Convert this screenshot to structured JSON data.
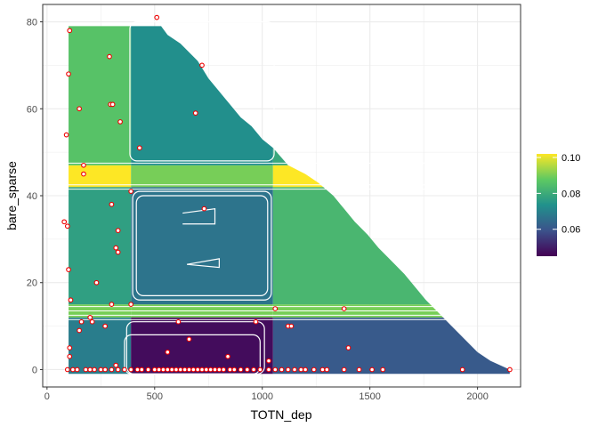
{
  "chart_data": {
    "type": "heatmap",
    "xlabel": "TOTN_dep",
    "ylabel": "bare_sparse",
    "xlim": [
      -20,
      2200
    ],
    "ylim": [
      -4,
      84
    ],
    "x_ticks": [
      0,
      500,
      1000,
      1500,
      2000
    ],
    "x_tick_labels": [
      "0",
      "500",
      "1000",
      "1500",
      "2000"
    ],
    "y_ticks": [
      0,
      20,
      40,
      60,
      80
    ],
    "y_tick_labels": [
      "0",
      "20",
      "40",
      "60",
      "80"
    ],
    "grid": true,
    "legend": {
      "position": "right",
      "min": 0.045,
      "max": 0.102,
      "ticks": [
        0.06,
        0.08,
        0.1
      ],
      "tick_labels": [
        "0.06",
        "0.08",
        "0.10"
      ],
      "colormap": "viridis"
    },
    "surface": {
      "x_bands": [
        {
          "from": 100,
          "to": 390
        },
        {
          "from": 390,
          "to": 1050
        },
        {
          "from": 1050,
          "to": 2150
        }
      ],
      "y_bands": [
        {
          "from": -1,
          "to": 12,
          "values": [
            0.069,
            0.047,
            0.061
          ]
        },
        {
          "from": 12,
          "to": 15,
          "values": [
            0.09,
            0.09,
            0.09
          ]
        },
        {
          "from": 15,
          "to": 42,
          "values": [
            0.077,
            0.067,
            0.083
          ]
        },
        {
          "from": 42,
          "to": 47,
          "values": [
            0.102,
            0.09,
            0.102
          ]
        },
        {
          "from": 47,
          "to": 80,
          "values": [
            0.086,
            0.073,
            0.079
          ]
        }
      ],
      "upper_boundary": [
        [
          100,
          79
        ],
        [
          530,
          79
        ],
        [
          560,
          77
        ],
        [
          620,
          75
        ],
        [
          700,
          71
        ],
        [
          750,
          67
        ],
        [
          800,
          64
        ],
        [
          850,
          61
        ],
        [
          900,
          58
        ],
        [
          950,
          56
        ],
        [
          1000,
          53
        ],
        [
          1050,
          51
        ],
        [
          1120,
          47
        ],
        [
          1200,
          45
        ],
        [
          1260,
          43
        ],
        [
          1330,
          40
        ],
        [
          1380,
          37
        ],
        [
          1430,
          34
        ],
        [
          1490,
          31
        ],
        [
          1540,
          28
        ],
        [
          1600,
          25
        ],
        [
          1660,
          22
        ],
        [
          1710,
          19
        ],
        [
          1760,
          16
        ],
        [
          1820,
          13
        ],
        [
          1880,
          10
        ],
        [
          1940,
          7
        ],
        [
          2000,
          4
        ],
        [
          2060,
          2
        ],
        [
          2150,
          0
        ]
      ]
    },
    "points": [
      [
        510,
        81
      ],
      [
        105,
        78
      ],
      [
        100,
        68
      ],
      [
        720,
        70
      ],
      [
        290,
        72
      ],
      [
        150,
        60
      ],
      [
        295,
        61
      ],
      [
        305,
        61
      ],
      [
        690,
        59
      ],
      [
        340,
        57
      ],
      [
        430,
        51
      ],
      [
        90,
        54
      ],
      [
        170,
        47
      ],
      [
        170,
        45
      ],
      [
        390,
        41
      ],
      [
        730,
        37
      ],
      [
        300,
        38
      ],
      [
        80,
        34
      ],
      [
        330,
        32
      ],
      [
        95,
        33
      ],
      [
        320,
        28
      ],
      [
        330,
        27
      ],
      [
        100,
        23
      ],
      [
        230,
        20
      ],
      [
        110,
        16
      ],
      [
        300,
        15
      ],
      [
        390,
        15
      ],
      [
        1060,
        14
      ],
      [
        1380,
        14
      ],
      [
        200,
        12
      ],
      [
        160,
        11
      ],
      [
        210,
        11
      ],
      [
        610,
        11
      ],
      [
        970,
        11
      ],
      [
        1120,
        10
      ],
      [
        1135,
        10
      ],
      [
        150,
        9
      ],
      [
        270,
        10
      ],
      [
        660,
        7
      ],
      [
        1400,
        5
      ],
      [
        105,
        5
      ],
      [
        560,
        4
      ],
      [
        840,
        3
      ],
      [
        1030,
        2
      ],
      [
        105,
        3
      ],
      [
        320,
        1
      ],
      [
        95,
        0
      ],
      [
        120,
        0
      ],
      [
        140,
        0
      ],
      [
        180,
        0
      ],
      [
        200,
        0
      ],
      [
        220,
        0
      ],
      [
        250,
        0
      ],
      [
        270,
        0
      ],
      [
        300,
        0
      ],
      [
        330,
        0
      ],
      [
        360,
        0
      ],
      [
        390,
        0
      ],
      [
        420,
        0
      ],
      [
        440,
        0
      ],
      [
        470,
        0
      ],
      [
        500,
        0
      ],
      [
        520,
        0
      ],
      [
        540,
        0
      ],
      [
        560,
        0
      ],
      [
        580,
        0
      ],
      [
        600,
        0
      ],
      [
        620,
        0
      ],
      [
        640,
        0
      ],
      [
        660,
        0
      ],
      [
        680,
        0
      ],
      [
        700,
        0
      ],
      [
        720,
        0
      ],
      [
        740,
        0
      ],
      [
        760,
        0
      ],
      [
        780,
        0
      ],
      [
        800,
        0
      ],
      [
        820,
        0
      ],
      [
        850,
        0
      ],
      [
        870,
        0
      ],
      [
        900,
        0
      ],
      [
        930,
        0
      ],
      [
        960,
        0
      ],
      [
        990,
        0
      ],
      [
        1030,
        0
      ],
      [
        1060,
        0
      ],
      [
        1090,
        0
      ],
      [
        1120,
        0
      ],
      [
        1150,
        0
      ],
      [
        1180,
        0
      ],
      [
        1200,
        0
      ],
      [
        1240,
        0
      ],
      [
        1280,
        0
      ],
      [
        1300,
        0
      ],
      [
        1380,
        0
      ],
      [
        1450,
        0
      ],
      [
        1510,
        0
      ],
      [
        1560,
        0
      ],
      [
        1930,
        0
      ],
      [
        2150,
        0
      ]
    ],
    "colors": {
      "point_fill": "#ffffff",
      "point_stroke": "#ee0000",
      "contour": "#ffffff",
      "grid": "#ebebeb",
      "panel_border": "#333333"
    }
  }
}
